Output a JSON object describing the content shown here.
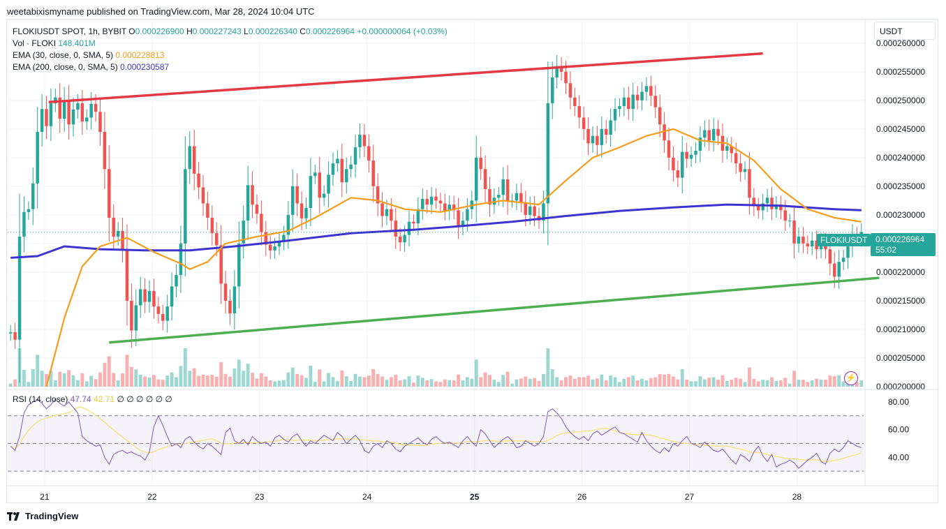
{
  "header": {
    "published": "weetabixismyname published on TradingView.com, Mar 28, 2024 10:04 UTC"
  },
  "legend": {
    "symbol": "FLOKIUSDT SPOT, 1h, BYBIT",
    "o_label": "O",
    "o_value": "0.000226900",
    "h_label": "H",
    "h_value": "0.000227243",
    "l_label": "L",
    "l_value": "0.000226340",
    "c_label": "C",
    "c_value": "0.000226964",
    "change": "+0.000000064 (+0.03%)",
    "vol_label": "Vol · FLOKI",
    "vol_value": "148.401M",
    "ema30_label": "EMA (30, close, 0, SMA, 5)",
    "ema30_value": "0.000228813",
    "ema200_label": "EMA (200, close, 0, SMA, 5)",
    "ema200_value": "0.000230587"
  },
  "rsi_legend": {
    "label": "RSI (14, close)",
    "value1": "47.74",
    "value2": "42.71",
    "placeholders": "∅ ∅ ∅ ∅ ∅ ∅"
  },
  "currency_button": "USDT",
  "price_tag": {
    "symbol": "FLOKIUSDT",
    "price": "0.000226964",
    "countdown": "55:02"
  },
  "footer": {
    "brand": "TradingView"
  },
  "colors": {
    "up": "#26a69a",
    "down": "#ef5350",
    "ema30": "#f59d1b",
    "ema200": "#3c33d1",
    "resistance": "#e53944",
    "support": "#4caf50",
    "rsi": "#7e57c2",
    "rsi_ma": "#f5e17a"
  },
  "chart_data": {
    "type": "candlestick",
    "title": "",
    "interval": "1h",
    "x_ticks": [
      {
        "label": "21",
        "t": 7.6
      },
      {
        "label": "22",
        "t": 31.6
      },
      {
        "label": "23",
        "t": 55.6
      },
      {
        "label": "24",
        "t": 79.6
      },
      {
        "label": "25",
        "t": 103.6
      },
      {
        "label": "26",
        "t": 127.6
      },
      {
        "label": "27",
        "t": 151.6
      },
      {
        "label": "28",
        "t": 175.6
      }
    ],
    "y_ticks": [
      "0.000200000",
      "0.000205000",
      "0.000210000",
      "0.000215000",
      "0.000220000",
      "0.000225000",
      "0.000230000",
      "0.000235000",
      "0.000240000",
      "0.000245000",
      "0.000250000",
      "0.000255000",
      "0.000260000"
    ],
    "ylim": [
      0.0002,
      0.000264
    ],
    "closes": [
      0.0002095,
      0.0002082,
      0.0002262,
      0.0002305,
      0.000231,
      0.0002355,
      0.0002445,
      0.0002485,
      0.0002455,
      0.0002495,
      0.0002505,
      0.0002468,
      0.00025,
      0.0002458,
      0.0002484,
      0.0002495,
      0.0002463,
      0.000247,
      0.0002494,
      0.000248,
      0.0002445,
      0.000238,
      0.0002295,
      0.0002262,
      0.0002272,
      0.000224,
      0.000215,
      0.0002098,
      0.0002142,
      0.000217,
      0.0002148,
      0.0002167,
      0.000214,
      0.0002127,
      0.0002115,
      0.000214,
      0.0002175,
      0.0002195,
      0.000225,
      0.000238,
      0.000242,
      0.0002372,
      0.0002348,
      0.000232,
      0.0002295,
      0.0002268,
      0.0002247,
      0.000218,
      0.000215,
      0.0002128,
      0.0002175,
      0.000225,
      0.000229,
      0.0002352,
      0.0002318,
      0.0002302,
      0.000227,
      0.0002248,
      0.0002238,
      0.0002245,
      0.0002254,
      0.0002265,
      0.00023,
      0.000235,
      0.000232,
      0.0002294,
      0.0002312,
      0.0002368,
      0.0002374,
      0.000233,
      0.0002337,
      0.000237,
      0.000239,
      0.0002398,
      0.0002357,
      0.000238,
      0.0002388,
      0.0002418,
      0.000244,
      0.000242,
      0.0002395,
      0.000235,
      0.000232,
      0.0002298,
      0.000231,
      0.000229,
      0.0002262,
      0.0002252,
      0.0002265,
      0.0002288,
      0.0002285,
      0.000231,
      0.0002328,
      0.0002318,
      0.0002332,
      0.0002325,
      0.000232,
      0.0002307,
      0.0002318,
      0.0002308,
      0.000228,
      0.000229,
      0.000231,
      0.0002325,
      0.00024,
      0.000238,
      0.0002345,
      0.0002318,
      0.000233,
      0.0002335,
      0.0002362,
      0.0002325,
      0.0002325,
      0.0002338,
      0.0002322,
      0.00023,
      0.0002315,
      0.0002298,
      0.000229,
      0.000232,
      0.0002495,
      0.000254,
      0.000256,
      0.000255,
      0.000253,
      0.0002505,
      0.000249,
      0.000247,
      0.000245,
      0.0002425,
      0.0002438,
      0.0002422,
      0.000245,
      0.000244,
      0.0002465,
      0.0002485,
      0.000249,
      0.0002505,
      0.0002485,
      0.000251,
      0.00025,
      0.0002515,
      0.0002525,
      0.0002508,
      0.0002488,
      0.0002458,
      0.000243,
      0.00024,
      0.0002378,
      0.0002365,
      0.000241,
      0.0002398,
      0.0002405,
      0.0002412,
      0.0002435,
      0.0002448,
      0.000243,
      0.000245,
      0.0002438,
      0.0002412,
      0.000242,
      0.0002408,
      0.000239,
      0.0002375,
      0.000238,
      0.000233,
      0.0002315,
      0.0002308,
      0.000232,
      0.000233,
      0.000231,
      0.0002318,
      0.0002308,
      0.000229,
      0.000229,
      0.000225,
      0.0002262,
      0.000225,
      0.0002245,
      0.0002255,
      0.000224,
      0.0002252,
      0.000224,
      0.0002215,
      0.0002192,
      0.0002218,
      0.0002225,
      0.0002245,
      0.0002265,
      0.000226,
      0.000227
    ],
    "ema30": [
      {
        "t": 8,
        "v": 0.0002
      },
      {
        "t": 12,
        "v": 0.000212
      },
      {
        "t": 16,
        "v": 0.000221
      },
      {
        "t": 20,
        "v": 0.0002245
      },
      {
        "t": 26,
        "v": 0.000226
      },
      {
        "t": 32,
        "v": 0.0002235
      },
      {
        "t": 38,
        "v": 0.0002215
      },
      {
        "t": 40,
        "v": 0.0002205
      },
      {
        "t": 44,
        "v": 0.0002218
      },
      {
        "t": 48,
        "v": 0.000225
      },
      {
        "t": 55,
        "v": 0.0002262
      },
      {
        "t": 62,
        "v": 0.0002272
      },
      {
        "t": 68,
        "v": 0.0002295
      },
      {
        "t": 76,
        "v": 0.000233
      },
      {
        "t": 82,
        "v": 0.0002325
      },
      {
        "t": 88,
        "v": 0.000231
      },
      {
        "t": 96,
        "v": 0.0002305
      },
      {
        "t": 104,
        "v": 0.0002318
      },
      {
        "t": 110,
        "v": 0.0002325
      },
      {
        "t": 118,
        "v": 0.0002318
      },
      {
        "t": 124,
        "v": 0.000236
      },
      {
        "t": 130,
        "v": 0.00024
      },
      {
        "t": 136,
        "v": 0.0002418
      },
      {
        "t": 142,
        "v": 0.0002438
      },
      {
        "t": 148,
        "v": 0.000245
      },
      {
        "t": 154,
        "v": 0.000243
      },
      {
        "t": 160,
        "v": 0.0002425
      },
      {
        "t": 166,
        "v": 0.0002395
      },
      {
        "t": 172,
        "v": 0.0002345
      },
      {
        "t": 178,
        "v": 0.000231
      },
      {
        "t": 184,
        "v": 0.0002295
      },
      {
        "t": 190,
        "v": 0.0002288
      }
    ],
    "ema200": [
      {
        "t": 0,
        "v": 0.0002225
      },
      {
        "t": 6,
        "v": 0.0002228
      },
      {
        "t": 12,
        "v": 0.0002245
      },
      {
        "t": 20,
        "v": 0.000224
      },
      {
        "t": 30,
        "v": 0.0002238
      },
      {
        "t": 40,
        "v": 0.0002238
      },
      {
        "t": 50,
        "v": 0.0002245
      },
      {
        "t": 62,
        "v": 0.0002255
      },
      {
        "t": 76,
        "v": 0.0002268
      },
      {
        "t": 90,
        "v": 0.0002274
      },
      {
        "t": 100,
        "v": 0.000228
      },
      {
        "t": 112,
        "v": 0.0002288
      },
      {
        "t": 124,
        "v": 0.0002298
      },
      {
        "t": 136,
        "v": 0.0002307
      },
      {
        "t": 148,
        "v": 0.0002313
      },
      {
        "t": 160,
        "v": 0.0002318
      },
      {
        "t": 172,
        "v": 0.0002316
      },
      {
        "t": 184,
        "v": 0.000231
      },
      {
        "t": 190,
        "v": 0.0002308
      }
    ],
    "resistance": [
      {
        "t": 8.5,
        "v": 0.0002497
      },
      {
        "t": 168,
        "v": 0.0002582
      }
    ],
    "support": [
      {
        "t": 22,
        "v": 0.0002077
      },
      {
        "t": 194,
        "v": 0.000219
      }
    ],
    "rsi": {
      "ylim": [
        20,
        85
      ],
      "y_ticks": [
        "40.00",
        "60.00",
        "80.00"
      ],
      "bands": [
        30,
        50,
        70
      ],
      "values": [
        48,
        45,
        55,
        72,
        78,
        80,
        82,
        79,
        75,
        78,
        82,
        79,
        77,
        80,
        76,
        72,
        55,
        52,
        50,
        48,
        49,
        40,
        35,
        42,
        44,
        45,
        43,
        44,
        42,
        41,
        38,
        44,
        62,
        70,
        63,
        55,
        48,
        50,
        47,
        53,
        55,
        51,
        48,
        46,
        50,
        48,
        45,
        42,
        58,
        61,
        52,
        50,
        53,
        49,
        55,
        52,
        50,
        51,
        48,
        54,
        56,
        53,
        51,
        55,
        57,
        52,
        48,
        52,
        50,
        53,
        56,
        54,
        52,
        58,
        55,
        50,
        53,
        56,
        52,
        45,
        43,
        48,
        50,
        47,
        52,
        50,
        46,
        44,
        48,
        50,
        52,
        54,
        51,
        49,
        53,
        55,
        52,
        50,
        51,
        49,
        47,
        52,
        55,
        51,
        48,
        60,
        57,
        52,
        47,
        50,
        53,
        55,
        52,
        47,
        48,
        52,
        50,
        48,
        50,
        55,
        73,
        75,
        72,
        68,
        62,
        58,
        55,
        53,
        55,
        52,
        57,
        59,
        56,
        58,
        60,
        62,
        58,
        57,
        55,
        53,
        51,
        58,
        52,
        48,
        45,
        43,
        47,
        44,
        50,
        48,
        52,
        55,
        50,
        49,
        47,
        51,
        48,
        45,
        44,
        46,
        42,
        38,
        35,
        42,
        40,
        37,
        44,
        48,
        41,
        37,
        42,
        33,
        35,
        36,
        38,
        36,
        32,
        35,
        38,
        40,
        43,
        37,
        35,
        43,
        46,
        44,
        47,
        52,
        50,
        48,
        47
      ]
    }
  }
}
